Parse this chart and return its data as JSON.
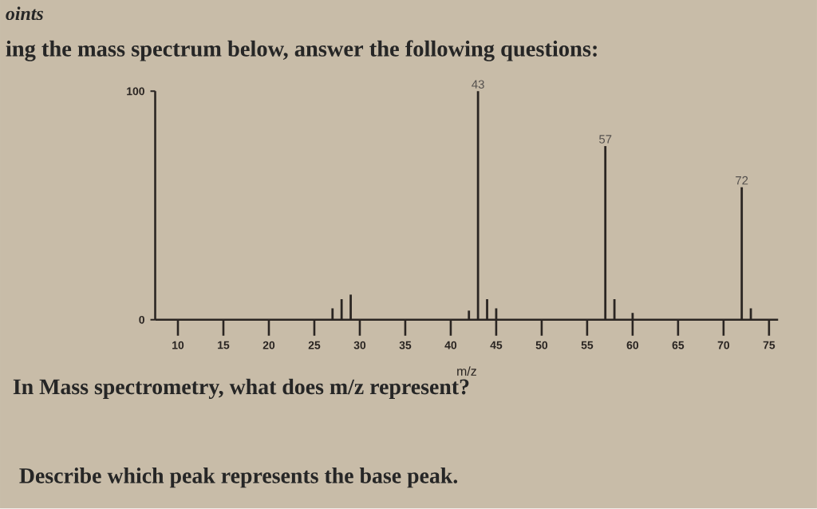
{
  "chart_data": {
    "type": "bar",
    "title": "oints",
    "subtitle": "ing the mass spectrum below, answer the following questions:",
    "xlabel": "m/z",
    "x": [
      27,
      28,
      29,
      42,
      43,
      44,
      45,
      57,
      58,
      60,
      72,
      73
    ],
    "values": [
      5,
      9,
      11,
      4,
      100,
      9,
      5,
      76,
      9,
      3,
      58,
      5
    ],
    "color": "#2a2522",
    "xlim": [
      7.5,
      76
    ],
    "xticks": [
      10,
      15,
      20,
      25,
      30,
      35,
      40,
      45,
      50,
      55,
      60,
      65,
      70,
      75
    ],
    "ylim": [
      0,
      100
    ],
    "yticks": [
      0,
      100
    ],
    "annotations": [
      {
        "text": "43",
        "x": 43,
        "y": 100
      },
      {
        "text": "57",
        "x": 57,
        "y": 76
      },
      {
        "text": "72",
        "x": 72,
        "y": 58
      },
      "In Mass spectrometry, what does m/z represent?",
      "Describe which peak represents the base peak."
    ]
  }
}
